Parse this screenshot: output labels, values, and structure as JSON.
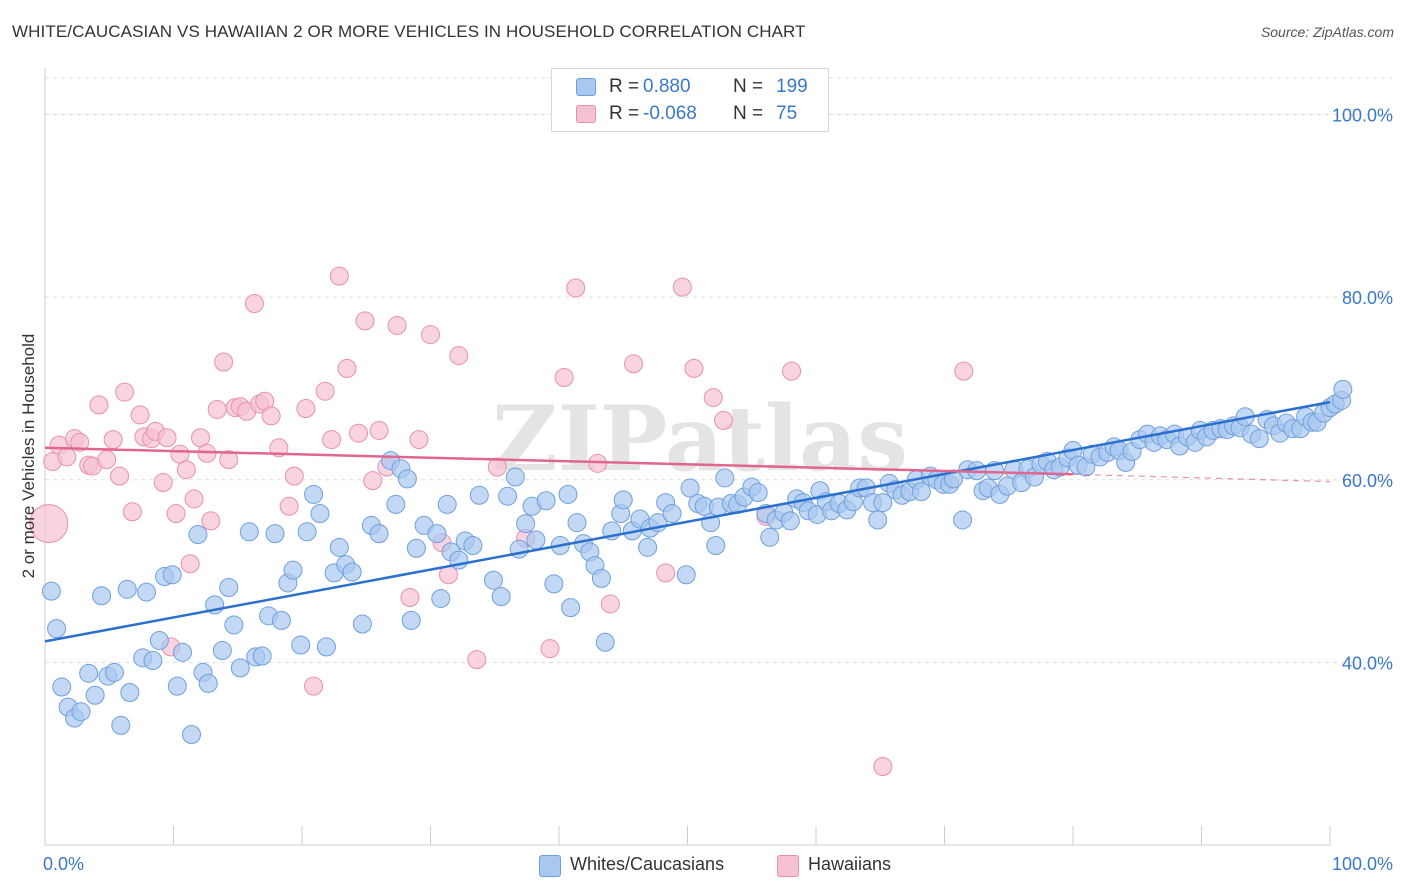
{
  "title": "WHITE/CAUCASIAN VS HAWAIIAN 2 OR MORE VEHICLES IN HOUSEHOLD CORRELATION CHART",
  "source": "Source: ZipAtlas.com",
  "watermark": "ZIPatlas",
  "colors": {
    "blue_fill": "#a9c8ef",
    "blue_stroke": "#6fa0dc",
    "blue_line": "#2b6fcf",
    "pink_fill": "#f6c1d2",
    "pink_stroke": "#e891ad",
    "pink_line": "#e06690",
    "axis_text": "#3a78c9",
    "grid": "#dddddd"
  },
  "legend_top": {
    "rows": [
      {
        "r_label": "R =",
        "r_value": "0.880",
        "n_label": "N =",
        "n_value": "199"
      },
      {
        "r_label": "R =",
        "r_value": "-0.068",
        "n_label": "N =",
        "n_value": "75"
      }
    ]
  },
  "legend_bottom": {
    "items": [
      {
        "label": "Whites/Caucasians"
      },
      {
        "label": "Hawaiians"
      }
    ]
  },
  "chart_data": {
    "type": "scatter",
    "ylabel": "2 or more Vehicles in Household",
    "xlim": [
      0,
      100
    ],
    "ylim": [
      20,
      104
    ],
    "x_tick_labels": [
      "0.0%",
      "100.0%"
    ],
    "y_ticks": [
      40,
      60,
      80,
      100
    ],
    "y_tick_labels": [
      "40.0%",
      "60.0%",
      "80.0%",
      "100.0%"
    ],
    "grid": true,
    "series": [
      {
        "name": "Whites/Caucasians",
        "color": "#a9c8ef",
        "trend": {
          "x0": 0,
          "y0": 42.3,
          "x1": 100,
          "y1": 68.5,
          "style": "solid"
        },
        "points": [
          [
            0.5,
            47.8
          ],
          [
            0.9,
            43.7
          ],
          [
            1.3,
            37.3
          ],
          [
            1.8,
            35.1
          ],
          [
            2.3,
            33.9
          ],
          [
            2.8,
            34.6
          ],
          [
            3.4,
            38.8
          ],
          [
            3.9,
            36.4
          ],
          [
            4.4,
            47.3
          ],
          [
            4.9,
            38.5
          ],
          [
            5.4,
            38.9
          ],
          [
            5.9,
            33.1
          ],
          [
            6.4,
            48.0
          ],
          [
            6.6,
            36.7
          ],
          [
            7.6,
            40.5
          ],
          [
            7.9,
            47.7
          ],
          [
            8.4,
            40.2
          ],
          [
            8.9,
            42.4
          ],
          [
            9.3,
            49.4
          ],
          [
            9.9,
            49.6
          ],
          [
            10.3,
            37.4
          ],
          [
            10.7,
            41.1
          ],
          [
            11.4,
            32.1
          ],
          [
            11.9,
            54.0
          ],
          [
            12.3,
            38.9
          ],
          [
            12.7,
            37.7
          ],
          [
            13.2,
            46.3
          ],
          [
            13.8,
            41.3
          ],
          [
            14.3,
            48.2
          ],
          [
            14.7,
            44.1
          ],
          [
            15.2,
            39.4
          ],
          [
            15.9,
            54.3
          ],
          [
            16.4,
            40.6
          ],
          [
            16.9,
            40.7
          ],
          [
            17.4,
            45.1
          ],
          [
            17.9,
            54.1
          ],
          [
            18.4,
            44.6
          ],
          [
            18.9,
            48.7
          ],
          [
            19.3,
            50.1
          ],
          [
            19.9,
            41.9
          ],
          [
            20.4,
            54.3
          ],
          [
            20.9,
            58.4
          ],
          [
            21.4,
            56.3
          ],
          [
            21.9,
            41.7
          ],
          [
            22.5,
            49.8
          ],
          [
            22.9,
            52.6
          ],
          [
            23.4,
            50.7
          ],
          [
            23.9,
            49.9
          ],
          [
            24.7,
            44.2
          ],
          [
            25.4,
            55.0
          ],
          [
            26.0,
            54.1
          ],
          [
            26.9,
            62.1
          ],
          [
            27.3,
            57.3
          ],
          [
            27.7,
            61.2
          ],
          [
            28.2,
            60.1
          ],
          [
            28.5,
            44.6
          ],
          [
            28.9,
            52.5
          ],
          [
            29.5,
            55.0
          ],
          [
            30.5,
            54.1
          ],
          [
            30.8,
            47.0
          ],
          [
            31.3,
            57.3
          ],
          [
            31.6,
            52.1
          ],
          [
            32.2,
            51.2
          ],
          [
            32.7,
            53.3
          ],
          [
            33.3,
            52.8
          ],
          [
            33.8,
            58.3
          ],
          [
            34.9,
            49.0
          ],
          [
            35.5,
            47.2
          ],
          [
            36.0,
            58.2
          ],
          [
            36.6,
            60.3
          ],
          [
            36.9,
            52.4
          ],
          [
            37.4,
            55.2
          ],
          [
            37.9,
            57.1
          ],
          [
            38.2,
            53.4
          ],
          [
            39.0,
            57.7
          ],
          [
            39.6,
            48.6
          ],
          [
            40.1,
            52.8
          ],
          [
            40.7,
            58.4
          ],
          [
            40.9,
            46.0
          ],
          [
            41.4,
            55.3
          ],
          [
            41.9,
            53.0
          ],
          [
            42.4,
            52.1
          ],
          [
            42.8,
            50.6
          ],
          [
            43.3,
            49.2
          ],
          [
            43.6,
            42.2
          ],
          [
            44.1,
            54.4
          ],
          [
            44.8,
            56.3
          ],
          [
            45.0,
            57.8
          ],
          [
            45.7,
            54.4
          ],
          [
            46.3,
            55.7
          ],
          [
            46.9,
            52.6
          ],
          [
            47.1,
            54.7
          ],
          [
            47.7,
            55.3
          ],
          [
            48.3,
            57.5
          ],
          [
            48.8,
            56.3
          ],
          [
            49.9,
            49.6
          ],
          [
            50.2,
            59.1
          ],
          [
            50.8,
            57.4
          ],
          [
            51.3,
            57.1
          ],
          [
            51.8,
            55.3
          ],
          [
            52.2,
            52.8
          ],
          [
            52.4,
            57.0
          ],
          [
            52.9,
            60.2
          ],
          [
            53.4,
            57.4
          ],
          [
            53.9,
            57.3
          ],
          [
            54.4,
            58.1
          ],
          [
            55.0,
            59.2
          ],
          [
            55.5,
            58.6
          ],
          [
            56.1,
            56.3
          ],
          [
            56.4,
            53.7
          ],
          [
            56.9,
            55.6
          ],
          [
            57.5,
            56.4
          ],
          [
            58.0,
            55.5
          ],
          [
            58.5,
            57.9
          ],
          [
            59.0,
            57.5
          ],
          [
            59.4,
            56.6
          ],
          [
            60.1,
            56.2
          ],
          [
            60.3,
            58.8
          ],
          [
            60.8,
            57.6
          ],
          [
            61.2,
            56.6
          ],
          [
            61.8,
            57.4
          ],
          [
            62.4,
            56.7
          ],
          [
            62.9,
            57.6
          ],
          [
            63.4,
            59.1
          ],
          [
            63.9,
            59.1
          ],
          [
            64.4,
            57.5
          ],
          [
            64.8,
            55.6
          ],
          [
            65.2,
            57.5
          ],
          [
            65.7,
            59.6
          ],
          [
            66.2,
            58.9
          ],
          [
            66.7,
            58.3
          ],
          [
            67.3,
            58.7
          ],
          [
            67.8,
            60.0
          ],
          [
            68.2,
            58.7
          ],
          [
            68.9,
            60.4
          ],
          [
            69.4,
            60.0
          ],
          [
            69.9,
            59.5
          ],
          [
            70.4,
            59.5
          ],
          [
            70.7,
            60.1
          ],
          [
            71.4,
            55.6
          ],
          [
            71.8,
            61.1
          ],
          [
            72.5,
            61.0
          ],
          [
            73.0,
            58.8
          ],
          [
            73.4,
            59.1
          ],
          [
            73.9,
            61.0
          ],
          [
            74.3,
            58.4
          ],
          [
            74.9,
            59.3
          ],
          [
            75.4,
            61.1
          ],
          [
            76.0,
            59.7
          ],
          [
            76.5,
            61.2
          ],
          [
            77.0,
            60.3
          ],
          [
            77.5,
            61.7
          ],
          [
            78.0,
            62.0
          ],
          [
            78.5,
            61.1
          ],
          [
            79.0,
            61.4
          ],
          [
            79.6,
            62.4
          ],
          [
            80.0,
            63.2
          ],
          [
            80.4,
            61.6
          ],
          [
            81.0,
            61.4
          ],
          [
            81.5,
            62.8
          ],
          [
            82.1,
            62.5
          ],
          [
            82.7,
            63.0
          ],
          [
            83.2,
            63.6
          ],
          [
            83.6,
            63.2
          ],
          [
            84.1,
            61.9
          ],
          [
            84.6,
            63.1
          ],
          [
            85.2,
            64.4
          ],
          [
            85.8,
            65.0
          ],
          [
            86.3,
            64.1
          ],
          [
            86.8,
            64.8
          ],
          [
            87.3,
            64.4
          ],
          [
            87.9,
            65.0
          ],
          [
            88.3,
            63.7
          ],
          [
            88.9,
            64.7
          ],
          [
            89.5,
            64.1
          ],
          [
            89.9,
            65.4
          ],
          [
            90.4,
            64.7
          ],
          [
            90.9,
            65.4
          ],
          [
            91.5,
            65.6
          ],
          [
            92.0,
            65.5
          ],
          [
            92.5,
            65.9
          ],
          [
            93.0,
            65.7
          ],
          [
            93.4,
            66.9
          ],
          [
            93.9,
            65.0
          ],
          [
            94.5,
            64.5
          ],
          [
            95.1,
            66.6
          ],
          [
            95.6,
            65.9
          ],
          [
            96.1,
            65.1
          ],
          [
            96.6,
            66.2
          ],
          [
            97.1,
            65.6
          ],
          [
            97.7,
            65.6
          ],
          [
            98.1,
            66.9
          ],
          [
            98.6,
            66.3
          ],
          [
            99.0,
            66.3
          ],
          [
            99.5,
            67.3
          ],
          [
            100.0,
            67.9
          ],
          [
            100.4,
            68.3
          ],
          [
            100.9,
            68.7
          ],
          [
            101.0,
            69.9
          ]
        ]
      },
      {
        "name": "Hawaiians",
        "color": "#f6c1d2",
        "trend": {
          "x0": 0,
          "y0": 63.5,
          "x1": 80,
          "y1": 60.6,
          "dash_to": 100,
          "dash_y": 59.8,
          "style": "solid-then-dashed"
        },
        "points": [
          [
            0.3,
            55.2
          ],
          [
            0.6,
            62.0
          ],
          [
            1.1,
            63.8
          ],
          [
            1.7,
            62.5
          ],
          [
            2.3,
            64.5
          ],
          [
            2.7,
            64.1
          ],
          [
            3.4,
            61.6
          ],
          [
            3.7,
            61.5
          ],
          [
            4.2,
            68.2
          ],
          [
            4.8,
            62.2
          ],
          [
            5.3,
            64.4
          ],
          [
            5.8,
            60.4
          ],
          [
            6.2,
            69.6
          ],
          [
            6.8,
            56.5
          ],
          [
            7.4,
            67.1
          ],
          [
            7.7,
            64.7
          ],
          [
            8.3,
            64.5
          ],
          [
            8.6,
            65.3
          ],
          [
            9.2,
            59.7
          ],
          [
            9.5,
            64.6
          ],
          [
            9.8,
            41.7
          ],
          [
            10.2,
            56.3
          ],
          [
            10.5,
            62.8
          ],
          [
            11.0,
            61.1
          ],
          [
            11.3,
            50.8
          ],
          [
            11.6,
            57.9
          ],
          [
            12.1,
            64.6
          ],
          [
            12.6,
            62.9
          ],
          [
            12.9,
            55.5
          ],
          [
            13.4,
            67.7
          ],
          [
            13.9,
            72.9
          ],
          [
            14.3,
            62.2
          ],
          [
            14.8,
            67.9
          ],
          [
            15.2,
            68.0
          ],
          [
            15.7,
            67.5
          ],
          [
            16.3,
            79.3
          ],
          [
            16.7,
            68.3
          ],
          [
            17.1,
            68.6
          ],
          [
            17.6,
            67.0
          ],
          [
            18.2,
            63.5
          ],
          [
            19.0,
            57.1
          ],
          [
            19.4,
            60.4
          ],
          [
            20.3,
            67.8
          ],
          [
            20.9,
            37.4
          ],
          [
            21.8,
            69.7
          ],
          [
            22.3,
            64.4
          ],
          [
            22.9,
            82.3
          ],
          [
            23.5,
            72.2
          ],
          [
            24.4,
            65.1
          ],
          [
            24.9,
            77.4
          ],
          [
            25.5,
            59.9
          ],
          [
            26.0,
            65.4
          ],
          [
            26.6,
            61.4
          ],
          [
            27.4,
            76.9
          ],
          [
            28.4,
            47.1
          ],
          [
            29.1,
            64.4
          ],
          [
            30.0,
            75.9
          ],
          [
            30.9,
            53.1
          ],
          [
            31.4,
            49.6
          ],
          [
            32.2,
            73.6
          ],
          [
            33.6,
            40.3
          ],
          [
            35.2,
            61.4
          ],
          [
            37.4,
            53.6
          ],
          [
            39.3,
            41.5
          ],
          [
            40.4,
            71.2
          ],
          [
            41.3,
            81.0
          ],
          [
            43.0,
            61.8
          ],
          [
            44.0,
            46.4
          ],
          [
            45.8,
            72.7
          ],
          [
            48.3,
            49.8
          ],
          [
            49.6,
            81.1
          ],
          [
            50.5,
            72.2
          ],
          [
            52.0,
            69.0
          ],
          [
            52.8,
            66.5
          ],
          [
            56.1,
            56.0
          ],
          [
            58.1,
            71.9
          ],
          [
            65.2,
            28.6
          ],
          [
            71.5,
            71.9
          ]
        ]
      }
    ]
  }
}
